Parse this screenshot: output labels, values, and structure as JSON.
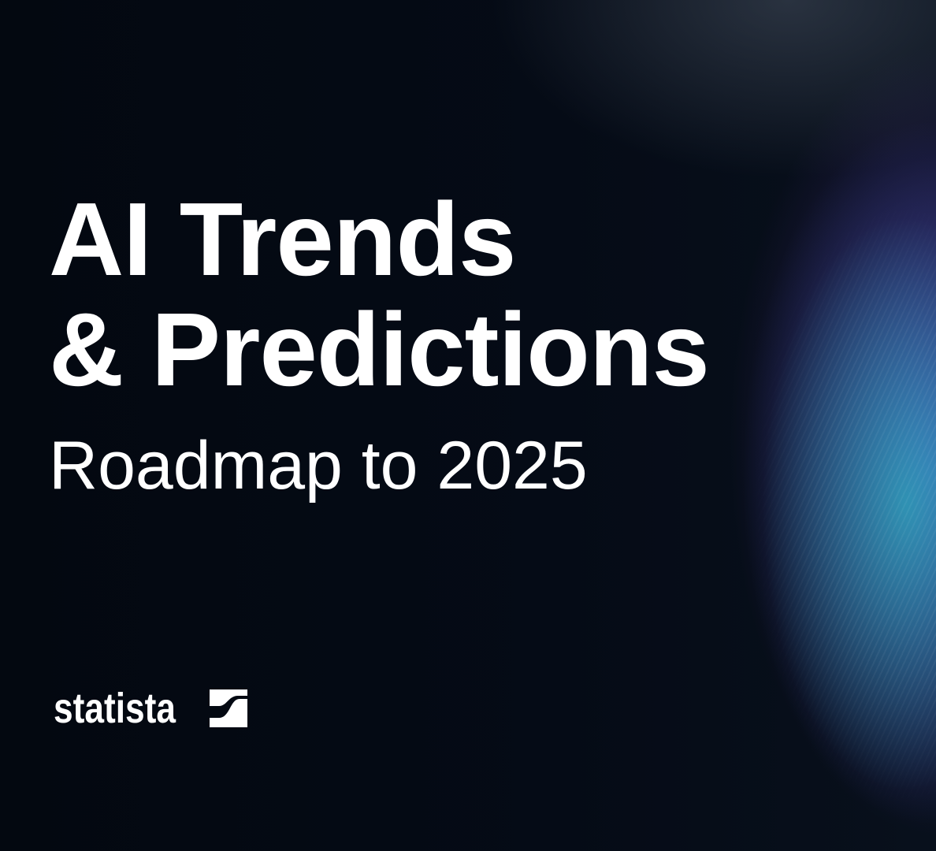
{
  "banner": {
    "title_line1": "AI Trends",
    "title_line2": "& Predictions",
    "subtitle": "Roadmap to 2025",
    "brand": "statista",
    "colors": {
      "background": "#040912",
      "text": "#ffffff",
      "glow_cyan": "#28d2c8",
      "glow_purple": "#783cc8"
    }
  }
}
